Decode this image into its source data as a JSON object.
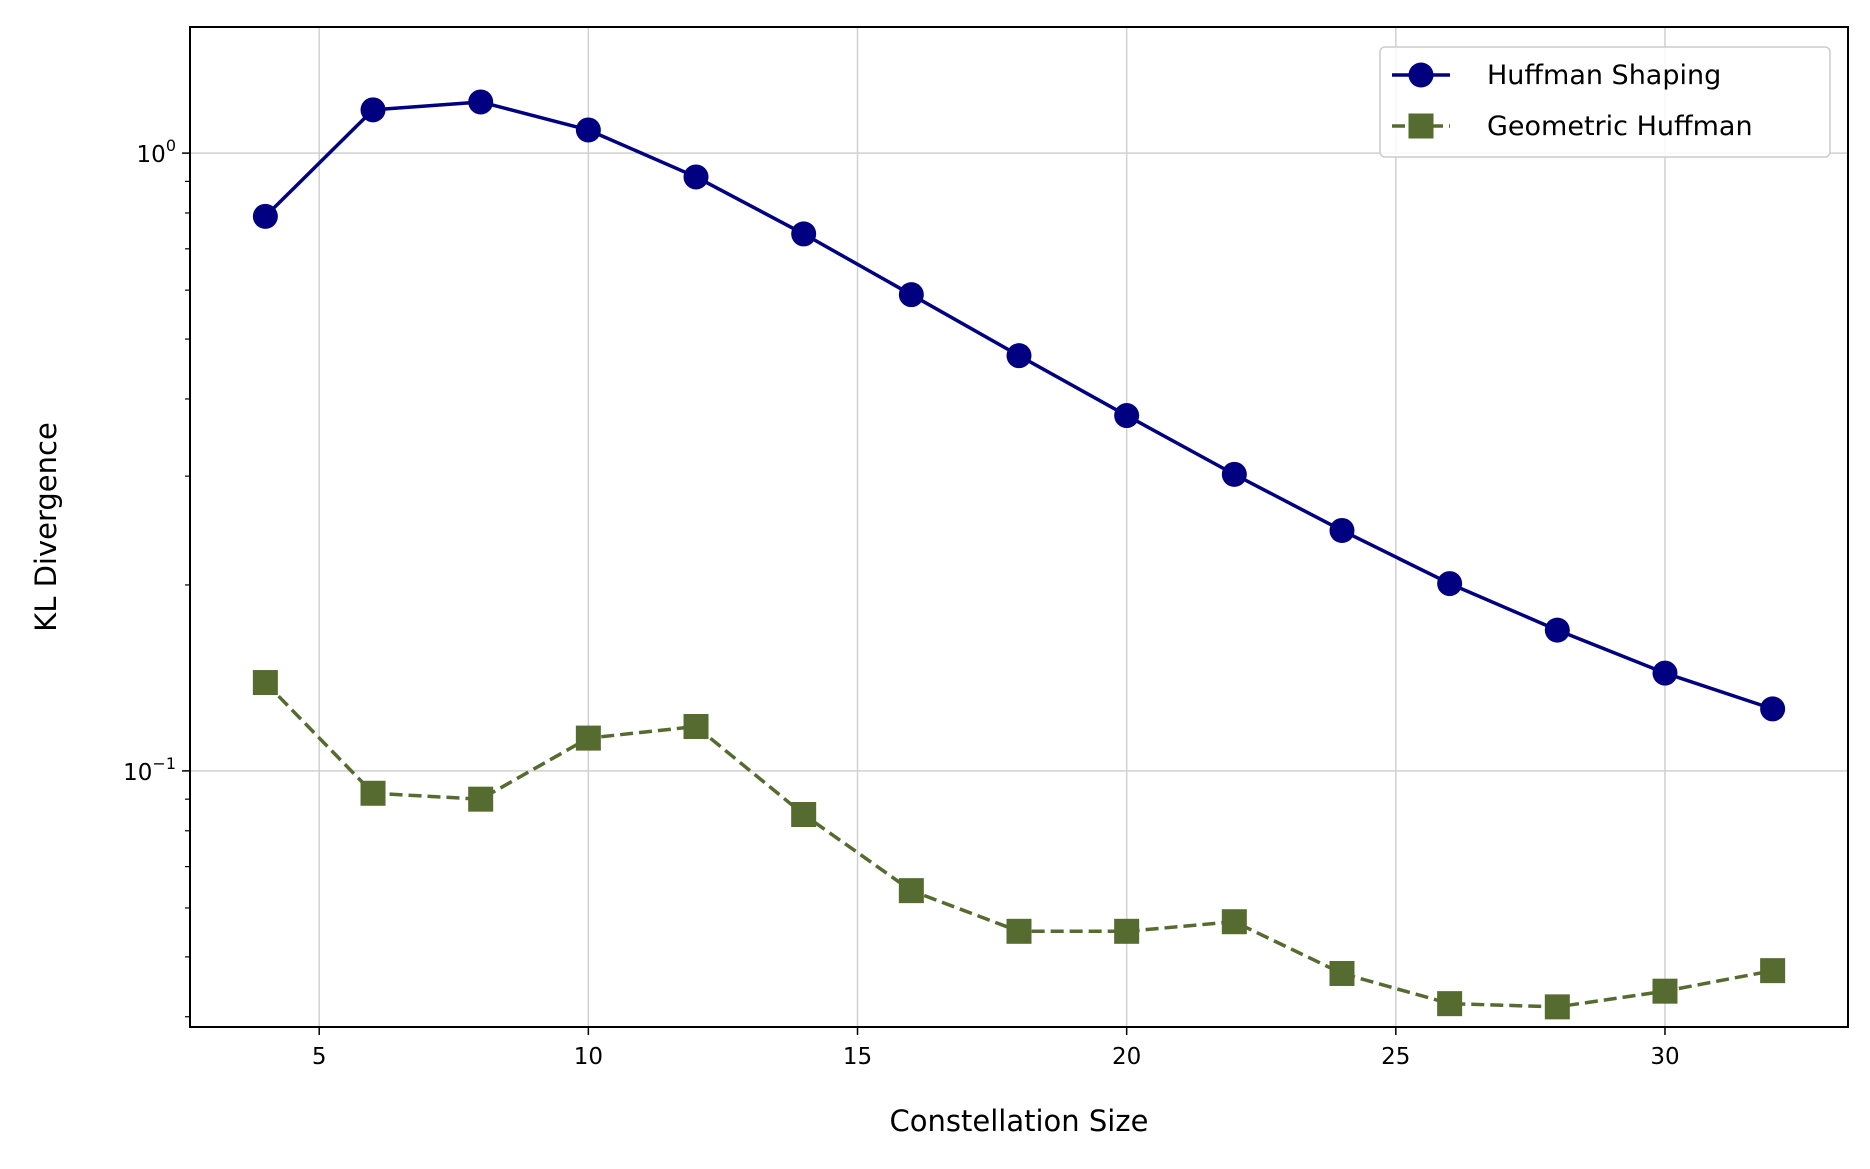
{
  "chart_data": {
    "type": "line",
    "title": "",
    "xlabel": "Constellation Size",
    "ylabel": "KL Divergence",
    "xscale": "linear",
    "yscale": "log",
    "xlim": [
      2.6,
      33.4
    ],
    "ylim": [
      0.0385,
      1.6
    ],
    "xticks": [
      5,
      10,
      15,
      20,
      25,
      30
    ],
    "xtick_labels": [
      "5",
      "10",
      "15",
      "20",
      "25",
      "30"
    ],
    "yticks": [
      0.1,
      1
    ],
    "ytick_labels": [
      {
        "base": "10",
        "exp": "−1"
      },
      {
        "base": "10",
        "exp": "0"
      }
    ],
    "grid": true,
    "legend_position": "top-right",
    "x": [
      4,
      6,
      8,
      10,
      12,
      14,
      16,
      18,
      20,
      22,
      24,
      26,
      28,
      30,
      32
    ],
    "series": [
      {
        "name": "Huffman Shaping",
        "color": "#000080",
        "linestyle": "solid",
        "marker": "circle",
        "values": [
          0.79,
          1.175,
          1.21,
          1.09,
          0.915,
          0.74,
          0.59,
          0.47,
          0.376,
          0.302,
          0.245,
          0.201,
          0.169,
          0.144,
          0.126
        ]
      },
      {
        "name": "Geometric Huffman",
        "color": "#556b2f",
        "linestyle": "dashed",
        "marker": "square",
        "values": [
          0.139,
          0.092,
          0.09,
          0.113,
          0.118,
          0.085,
          0.064,
          0.055,
          0.055,
          0.057,
          0.047,
          0.042,
          0.0415,
          0.044,
          0.0475
        ]
      }
    ]
  }
}
